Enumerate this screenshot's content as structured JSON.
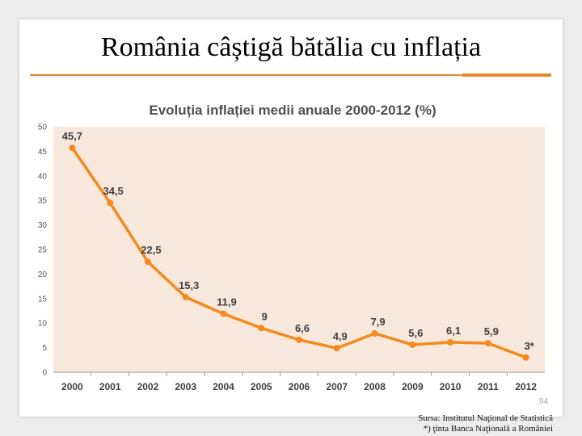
{
  "slide": {
    "title": "România câștigă bătălia cu inflația",
    "page_number": "94",
    "source_line1": "Sursa: Institutul Naţional de Statistică",
    "source_line2": "*) ţinta Banca Naţională a României"
  },
  "colors": {
    "line": "#f28a1e",
    "plot_bg": "#f8e7db",
    "title_text": "#505050",
    "label_text": "#404040"
  },
  "chart_data": {
    "type": "line",
    "title": "Evoluția inflației medii anuale 2000-2012 (%)",
    "categories": [
      "2000",
      "2001",
      "2002",
      "2003",
      "2004",
      "2005",
      "2006",
      "2007",
      "2008",
      "2009",
      "2010",
      "2011",
      "2012"
    ],
    "values": [
      45.7,
      34.5,
      22.5,
      15.3,
      11.9,
      9,
      6.6,
      4.9,
      7.9,
      5.6,
      6.1,
      5.9,
      3
    ],
    "data_labels": [
      "45,7",
      "34,5",
      "22,5",
      "15,3",
      "11,9",
      "9",
      "6,6",
      "4,9",
      "7,9",
      "5,6",
      "6,1",
      "5,9",
      "3*"
    ],
    "ylim": [
      0,
      50
    ],
    "yticks": [
      0,
      5,
      10,
      15,
      20,
      25,
      30,
      35,
      40,
      45,
      50
    ],
    "grid": false,
    "legend": false,
    "xlabel": "",
    "ylabel": ""
  }
}
